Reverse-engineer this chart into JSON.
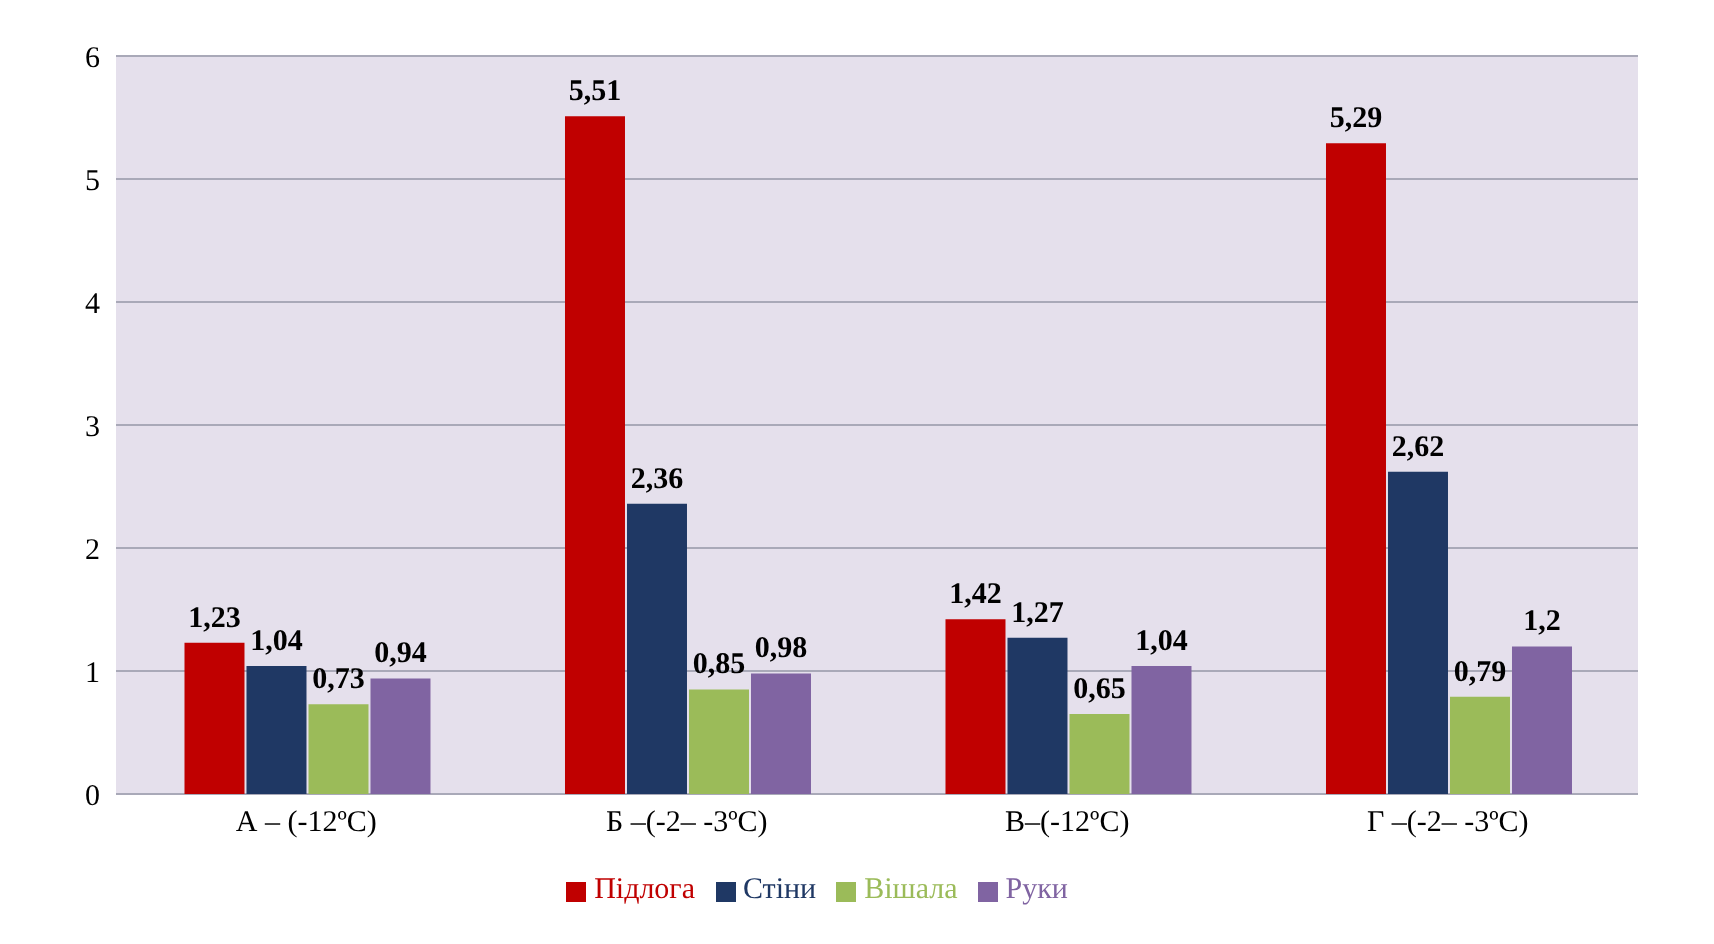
{
  "chart_data": {
    "type": "bar",
    "categories": [
      "А – (-12ºC)",
      "Б –(-2– -3ºC)",
      "В–(-12ºC)",
      "Г –(-2– -3ºC)"
    ],
    "series": [
      {
        "name": "Підлога",
        "color": "#c00000",
        "values": [
          1.23,
          5.51,
          1.42,
          5.29
        ],
        "value_labels": [
          "1,23",
          "5,51",
          "1,42",
          "5,29"
        ]
      },
      {
        "name": "Стіни",
        "color": "#1f3864",
        "values": [
          1.04,
          2.36,
          1.27,
          2.62
        ],
        "value_labels": [
          "1,04",
          "2,36",
          "1,27",
          "2,62"
        ]
      },
      {
        "name": "Вішала",
        "color": "#9bbb59",
        "values": [
          0.73,
          0.85,
          0.65,
          0.79
        ],
        "value_labels": [
          "0,73",
          "0,85",
          "0,65",
          "0,79"
        ]
      },
      {
        "name": "Руки",
        "color": "#8064a2",
        "values": [
          0.94,
          0.98,
          1.04,
          1.2
        ],
        "value_labels": [
          "0,94",
          "0,98",
          "1,04",
          "1,2"
        ]
      }
    ],
    "ylim": [
      0,
      6
    ],
    "yticks": [
      0,
      1,
      2,
      3,
      4,
      5,
      6
    ],
    "grid": "y",
    "legend": "bottom"
  }
}
